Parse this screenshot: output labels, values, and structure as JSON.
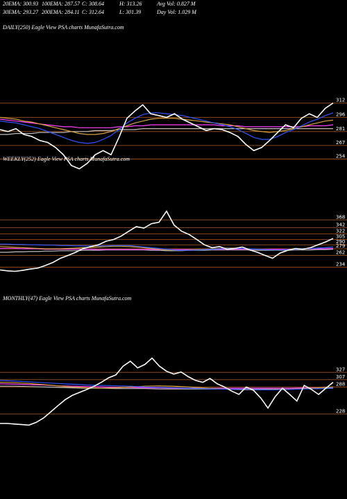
{
  "header": {
    "line1": [
      "20EMA: 300.93",
      "100EMA: 287.57",
      "C: 308.64",
      "H: 313.26",
      "Avg Vol: 0.827 M"
    ],
    "line2": [
      "30EMA: 293.27",
      "200EMA: 284.11",
      "C: 312.64",
      "L: 301.39",
      "Day Vol: 1.029 M"
    ]
  },
  "chart_data": [
    {
      "type": "line",
      "title": "DAILY(250) Eagle  View  PSA charts MunafaSutra.com",
      "log": true,
      "grid": true,
      "ylim": [
        235,
        319
      ],
      "yticks": [
        312,
        296,
        281,
        267,
        254
      ],
      "series": [
        {
          "color": "#c0c0c0",
          "values": [
            278,
            278,
            279,
            279,
            279,
            280,
            280,
            280,
            280,
            281,
            281,
            281,
            282,
            282,
            282,
            283,
            283,
            283,
            284,
            284,
            284,
            284,
            284,
            284,
            284,
            284,
            284,
            284,
            284,
            284,
            284,
            284,
            284,
            284,
            284,
            284,
            284,
            284,
            284,
            284,
            284,
            284,
            284
          ]
        },
        {
          "color": "#ff40ff",
          "values": [
            294,
            293,
            292,
            291,
            290,
            289,
            288,
            287,
            286,
            286,
            285,
            285,
            285,
            285,
            285,
            286,
            286,
            287,
            287,
            288,
            288,
            288,
            288,
            288,
            288,
            288,
            288,
            288,
            287,
            287,
            287,
            286,
            286,
            286,
            286,
            286,
            286,
            286,
            286,
            287,
            287,
            287,
            288
          ]
        },
        {
          "color": "#d9a441",
          "values": [
            296,
            295,
            294,
            292,
            291,
            289,
            287,
            285,
            283,
            281,
            279,
            278,
            278,
            279,
            281,
            284,
            287,
            290,
            292,
            294,
            295,
            295,
            295,
            294,
            293,
            292,
            291,
            290,
            289,
            288,
            286,
            284,
            282,
            281,
            280,
            281,
            282,
            284,
            286,
            288,
            290,
            292,
            293
          ]
        },
        {
          "color": "#2f55ff",
          "values": [
            292,
            291,
            290,
            288,
            286,
            284,
            281,
            278,
            275,
            272,
            270,
            269,
            270,
            273,
            277,
            283,
            290,
            295,
            299,
            301,
            301,
            300,
            299,
            298,
            296,
            294,
            292,
            290,
            288,
            286,
            283,
            279,
            275,
            273,
            273,
            276,
            280,
            283,
            287,
            291,
            294,
            298,
            301
          ]
        },
        {
          "color": "#ffffff",
          "values": [
            283,
            281,
            284,
            278,
            276,
            272,
            270,
            265,
            258,
            248,
            245,
            250,
            258,
            262,
            258,
            275,
            295,
            303,
            310,
            300,
            298,
            296,
            300,
            294,
            290,
            286,
            282,
            284,
            283,
            280,
            276,
            268,
            262,
            265,
            272,
            280,
            288,
            285,
            295,
            300,
            296,
            306,
            312
          ]
        }
      ]
    },
    {
      "type": "line",
      "title": "WEEKLY(252) Eagle View PSA charts MunafaSutra.com",
      "log": true,
      "grid": true,
      "ylim": [
        199,
        441
      ],
      "yticks": [
        368,
        342,
        322,
        305,
        290,
        279,
        262,
        234
      ],
      "series": [
        {
          "color": "#c0c0c0",
          "values": [
            270,
            270,
            271,
            271,
            272,
            272,
            273,
            273,
            274,
            274,
            274,
            275,
            275,
            275,
            276,
            276,
            276,
            276,
            276,
            276,
            275,
            275,
            274,
            274,
            274,
            275,
            275,
            275,
            276,
            276,
            276,
            276,
            276,
            276,
            275,
            275,
            275,
            275,
            275,
            276,
            276,
            276,
            277,
            277,
            278
          ]
        },
        {
          "color": "#ff40ff",
          "values": [
            280,
            280,
            280,
            279,
            279,
            279,
            278,
            278,
            278,
            278,
            278,
            278,
            278,
            277,
            277,
            277,
            277,
            277,
            277,
            277,
            277,
            277,
            277,
            277,
            277,
            277,
            277,
            277,
            278,
            278,
            278,
            278,
            278,
            278,
            278,
            278,
            278,
            278,
            278,
            278,
            279,
            279,
            279,
            279,
            280
          ]
        },
        {
          "color": "#d9a441",
          "values": [
            285,
            284,
            283,
            282,
            281,
            280,
            279,
            279,
            279,
            280,
            281,
            282,
            283,
            284,
            285,
            286,
            286,
            285,
            284,
            282,
            280,
            278,
            276,
            275,
            275,
            276,
            277,
            278,
            279,
            280,
            281,
            281,
            280,
            279,
            278,
            277,
            276,
            276,
            277,
            278,
            279,
            280,
            281,
            282,
            284
          ]
        },
        {
          "color": "#2f55ff",
          "values": [
            292,
            292,
            291,
            291,
            290,
            290,
            289,
            289,
            288,
            288,
            287,
            287,
            287,
            287,
            287,
            288,
            288,
            288,
            286,
            284,
            282,
            280,
            278,
            276,
            275,
            275,
            276,
            277,
            278,
            279,
            280,
            280,
            280,
            279,
            278,
            277,
            276,
            276,
            277,
            278,
            279,
            280,
            281,
            282,
            284
          ]
        },
        {
          "color": "#ffffff",
          "values": [
            228,
            226,
            225,
            227,
            230,
            232,
            238,
            245,
            255,
            262,
            270,
            280,
            285,
            290,
            300,
            305,
            315,
            330,
            345,
            340,
            355,
            360,
            400,
            350,
            330,
            320,
            305,
            290,
            282,
            285,
            278,
            280,
            284,
            276,
            270,
            262,
            255,
            268,
            275,
            280,
            278,
            282,
            290,
            298,
            308
          ]
        }
      ]
    },
    {
      "type": "line",
      "title": "MONTHLY(47) Eagle  View  PSA charts MunafaSutra.com",
      "log": true,
      "grid": true,
      "ylim": [
        205,
        409
      ],
      "yticks": [
        327,
        307,
        288,
        228
      ],
      "series": [
        {
          "color": "#c0c0c0",
          "values": [
            290,
            290,
            289,
            288,
            287,
            286,
            285,
            285,
            284,
            284,
            284,
            283,
            283,
            283,
            283,
            283,
            283,
            283,
            283,
            283,
            283,
            284,
            284,
            285
          ]
        },
        {
          "color": "#ff40ff",
          "values": [
            296,
            295,
            294,
            293,
            291,
            290,
            289,
            288,
            287,
            287,
            286,
            286,
            285,
            285,
            285,
            285,
            285,
            285,
            285,
            285,
            285,
            286,
            286,
            287
          ]
        },
        {
          "color": "#d9a441",
          "values": [
            300,
            299,
            297,
            294,
            291,
            288,
            286,
            285,
            286,
            288,
            290,
            291,
            290,
            288,
            286,
            284,
            282,
            281,
            281,
            282,
            283,
            284,
            286,
            288
          ]
        },
        {
          "color": "#2f55ff",
          "values": [
            305,
            303,
            301,
            299,
            297,
            295,
            293,
            292,
            291,
            290,
            288,
            287,
            286,
            285,
            284,
            283,
            282,
            282,
            281,
            281,
            282,
            283,
            284,
            286
          ]
        },
        {
          "color": "#ffffff",
          "values": [
            210,
            210,
            209,
            208,
            207,
            212,
            220,
            232,
            245,
            258,
            268,
            275,
            282,
            290,
            300,
            312,
            320,
            345,
            360,
            340,
            350,
            370,
            345,
            330,
            322,
            328,
            315,
            305,
            300,
            310,
            296,
            288,
            278,
            270,
            288,
            280,
            262,
            240,
            265,
            285,
            270,
            255,
            292,
            282,
            270,
            285,
            300
          ]
        }
      ]
    }
  ]
}
